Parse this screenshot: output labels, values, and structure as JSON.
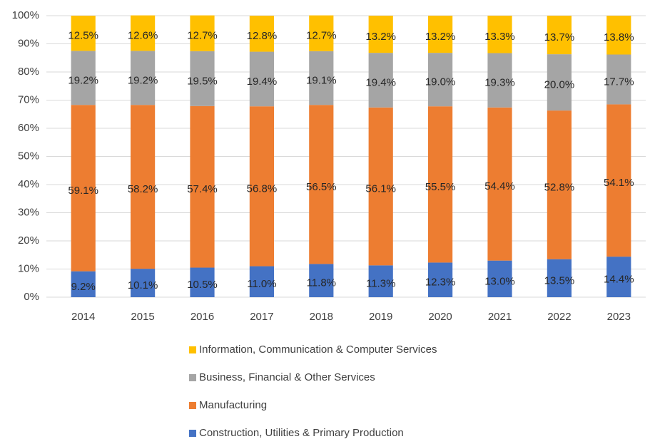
{
  "chart_data": {
    "type": "stacked_bar",
    "categories": [
      "2014",
      "2015",
      "2016",
      "2017",
      "2018",
      "2019",
      "2020",
      "2021",
      "2022",
      "2023"
    ],
    "series": [
      {
        "name": "Construction, Utilities & Primary Production",
        "color": "#4472c4",
        "values": [
          9.2,
          10.1,
          10.5,
          11.0,
          11.8,
          11.3,
          12.3,
          13.0,
          13.5,
          14.4
        ],
        "value_labels": [
          "9.2%",
          "10.1%",
          "10.5%",
          "11.0%",
          "11.8%",
          "11.3%",
          "12.3%",
          "13.0%",
          "13.5%",
          "14.4%"
        ]
      },
      {
        "name": "Manufacturing",
        "color": "#ed7d31",
        "values": [
          59.1,
          58.2,
          57.4,
          56.8,
          56.5,
          56.1,
          55.5,
          54.4,
          52.8,
          54.1
        ],
        "value_labels": [
          "59.1%",
          "58.2%",
          "57.4%",
          "56.8%",
          "56.5%",
          "56.1%",
          "55.5%",
          "54.4%",
          "52.8%",
          "54.1%"
        ]
      },
      {
        "name": "Business, Financial & Other Services",
        "color": "#a5a5a5",
        "values": [
          19.2,
          19.2,
          19.5,
          19.4,
          19.1,
          19.4,
          19.0,
          19.3,
          20.0,
          17.7
        ],
        "value_labels": [
          "19.2%",
          "19.2%",
          "19.5%",
          "19.4%",
          "19.1%",
          "19.4%",
          "19.0%",
          "19.3%",
          "20.0%",
          "17.7%"
        ]
      },
      {
        "name": "Information, Communication & Computer Services",
        "color": "#ffc000",
        "values": [
          12.5,
          12.6,
          12.7,
          12.8,
          12.7,
          13.2,
          13.2,
          13.3,
          13.7,
          13.8
        ],
        "value_labels": [
          "12.5%",
          "12.6%",
          "12.7%",
          "12.8%",
          "12.7%",
          "13.2%",
          "13.2%",
          "13.3%",
          "13.7%",
          "13.8%"
        ]
      }
    ],
    "ylim": [
      0,
      100
    ],
    "yticks": [
      {
        "value": 0,
        "label": "0%"
      },
      {
        "value": 10,
        "label": "10%"
      },
      {
        "value": 20,
        "label": "20%"
      },
      {
        "value": 30,
        "label": "30%"
      },
      {
        "value": 40,
        "label": "40%"
      },
      {
        "value": 50,
        "label": "50%"
      },
      {
        "value": 60,
        "label": "60%"
      },
      {
        "value": 70,
        "label": "70%"
      },
      {
        "value": 80,
        "label": "80%"
      },
      {
        "value": 90,
        "label": "90%"
      },
      {
        "value": 100,
        "label": "100%"
      }
    ],
    "grid": true,
    "legend": "bottom"
  }
}
